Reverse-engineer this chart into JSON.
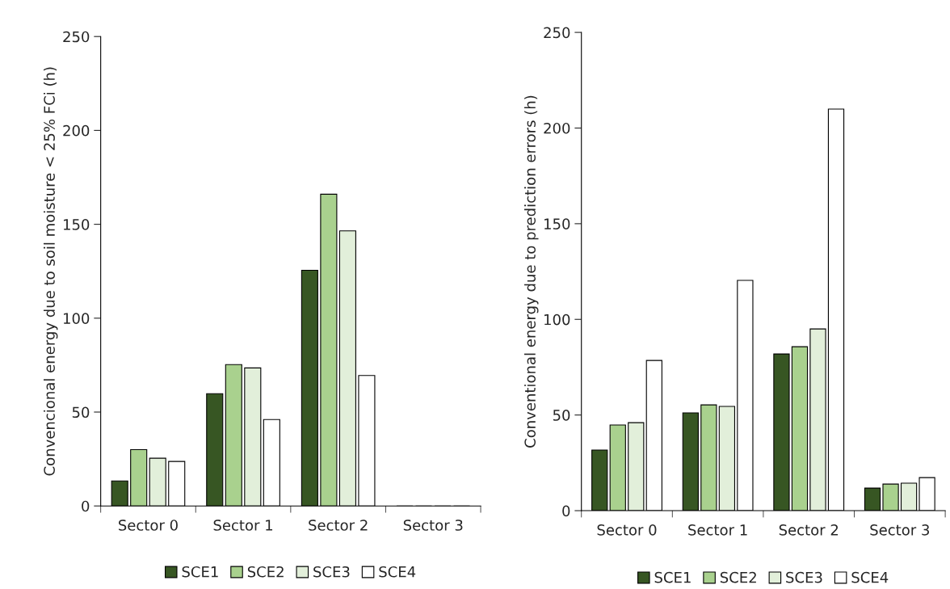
{
  "chart_data": [
    {
      "type": "bar",
      "ylabel": "Convencional energy due to soil moisture < 25% FCi (h)",
      "categories": [
        "Sector 0",
        "Sector 1",
        "Sector 2",
        "Sector 3"
      ],
      "ylim": [
        0,
        250
      ],
      "yticks": [
        0,
        50,
        100,
        150,
        200,
        250
      ],
      "grid": false,
      "legend": "bottom",
      "series": [
        {
          "name": "SCE1",
          "color": "#375623",
          "values": [
            13.3,
            59.8,
            125.5,
            0
          ]
        },
        {
          "name": "SCE2",
          "color": "#a9d18e",
          "values": [
            30,
            75.3,
            166,
            0
          ]
        },
        {
          "name": "SCE3",
          "color": "#e2efda",
          "values": [
            25.4,
            73.5,
            146.5,
            0
          ]
        },
        {
          "name": "SCE4",
          "color": "#ffffff",
          "values": [
            23.7,
            46,
            69.5,
            0
          ]
        }
      ]
    },
    {
      "type": "bar",
      "ylabel": "Conventional energy due to prediction errors (h)",
      "categories": [
        "Sector 0",
        "Sector 1",
        "Sector 2",
        "Sector 3"
      ],
      "ylim": [
        0,
        250
      ],
      "yticks": [
        0,
        50,
        100,
        150,
        200,
        250
      ],
      "grid": false,
      "legend": "bottom",
      "series": [
        {
          "name": "SCE1",
          "color": "#375623",
          "values": [
            31.7,
            51.1,
            81.9,
            11.8
          ]
        },
        {
          "name": "SCE2",
          "color": "#a9d18e",
          "values": [
            44.8,
            55.3,
            85.7,
            13.9
          ]
        },
        {
          "name": "SCE3",
          "color": "#e2efda",
          "values": [
            46,
            54.5,
            95,
            14.4
          ]
        },
        {
          "name": "SCE4",
          "color": "#ffffff",
          "values": [
            78.5,
            120.4,
            209.9,
            17.3
          ]
        }
      ]
    }
  ]
}
